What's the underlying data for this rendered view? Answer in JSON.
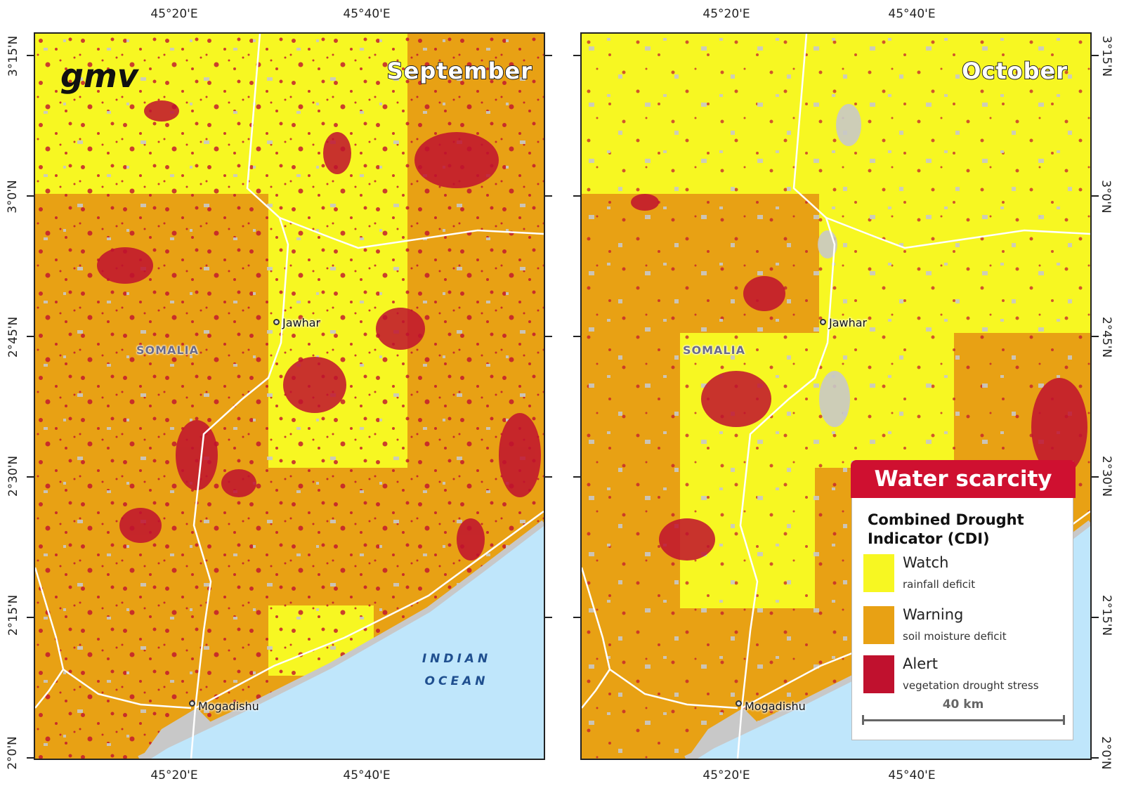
{
  "maps": [
    {
      "title": "September",
      "places": {
        "city1": "Jawhar",
        "city2": "Mogadishu",
        "country": "SOMALIA",
        "ocean_line1": "INDIAN",
        "ocean_line2": "OCEAN"
      }
    },
    {
      "title": "October",
      "places": {
        "city1": "Jawhar",
        "city2": "Mogadishu",
        "country": "SOMALIA"
      }
    }
  ],
  "axes": {
    "lon_labels": [
      "45°20'E",
      "45°40'E"
    ],
    "lat_labels": [
      "3°15'N",
      "3°0'N",
      "2°45'N",
      "2°30'N",
      "2°15'N",
      "2°0'N"
    ]
  },
  "logo": "gmv",
  "legend": {
    "header": "Water scarcity",
    "title_line1": "Combined Drought",
    "title_line2": "Indicator (CDI)",
    "items": [
      {
        "label": "Watch",
        "sublabel": "rainfall deficit",
        "color": "#f7f722"
      },
      {
        "label": "Warning",
        "sublabel": "soil moisture deficit",
        "color": "#e8a114"
      },
      {
        "label": "Alert",
        "sublabel": "vegetation drought stress",
        "color": "#c0112e"
      }
    ],
    "scale_label": "40 km"
  },
  "colors": {
    "watch": "#f7f722",
    "warning": "#e8a114",
    "alert": "#c0112e",
    "ocean": "#bfe6fb",
    "urban": "#c8c8c8",
    "road": "#ffffff",
    "legend_header": "#cf1030"
  }
}
